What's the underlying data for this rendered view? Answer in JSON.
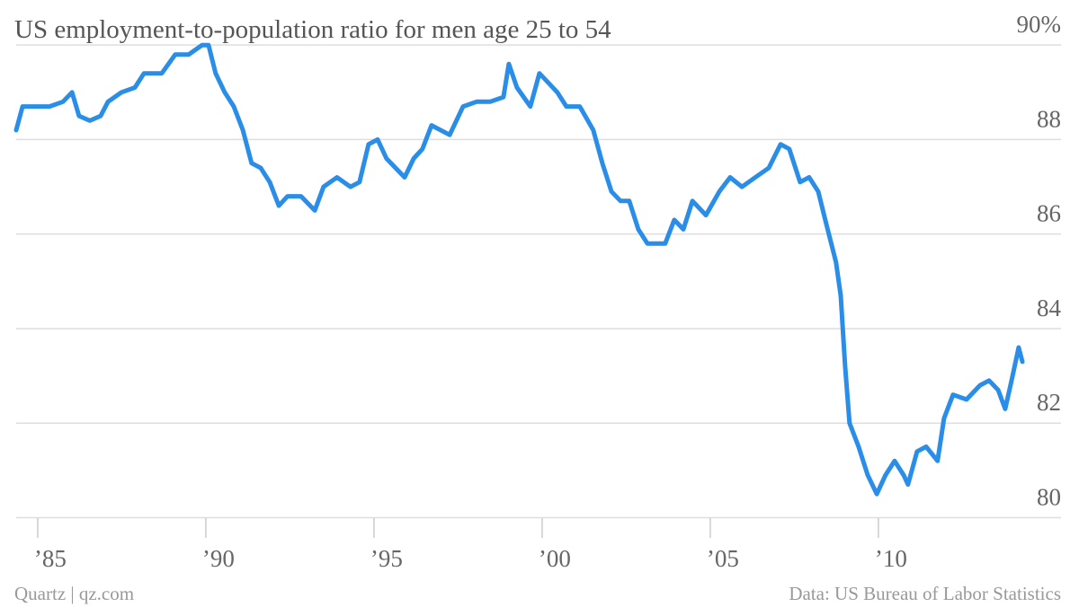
{
  "chart_data": {
    "type": "line",
    "title": "US employment-to-population ratio for men age 25 to 54",
    "source_left": "Quartz | qz.com",
    "source_right": "Data: US Bureau of Labor Statistics",
    "xlim": [
      1984.36,
      2015.43
    ],
    "xticks": [
      {
        "value": 1985,
        "label": "’85"
      },
      {
        "value": 1990,
        "label": "’90"
      },
      {
        "value": 1995,
        "label": "’95"
      },
      {
        "value": 2000,
        "label": "’00"
      },
      {
        "value": 2005,
        "label": "’05"
      },
      {
        "value": 2010,
        "label": "’10"
      }
    ],
    "ylim": [
      79.99,
      90.25
    ],
    "yticks": [
      80,
      82,
      84,
      86,
      88,
      {
        "value": 90,
        "label": "90%"
      }
    ],
    "grid": true,
    "series": [
      {
        "color": "#2a8ee8",
        "x": [
          1984.36,
          1984.55,
          1984.95,
          1985.35,
          1985.75,
          1986.02,
          1986.23,
          1986.55,
          1986.87,
          1987.09,
          1987.49,
          1987.89,
          1988.16,
          1988.42,
          1988.69,
          1989.09,
          1989.49,
          1989.89,
          1990.08,
          1990.29,
          1990.56,
          1990.83,
          1991.1,
          1991.36,
          1991.63,
          1991.9,
          1992.17,
          1992.43,
          1992.83,
          1993.24,
          1993.5,
          1993.9,
          1994.3,
          1994.57,
          1994.84,
          1995.11,
          1995.37,
          1995.64,
          1995.91,
          1996.18,
          1996.44,
          1996.71,
          1997.25,
          1997.65,
          1998.05,
          1998.45,
          1998.85,
          1999.01,
          1999.25,
          1999.65,
          1999.92,
          2000.19,
          2000.45,
          2000.72,
          2001.12,
          2001.52,
          2001.79,
          2002.06,
          2002.33,
          2002.59,
          2002.86,
          2003.13,
          2003.66,
          2003.93,
          2004.2,
          2004.47,
          2004.87,
          2005.27,
          2005.59,
          2005.94,
          2006.34,
          2006.74,
          2007.09,
          2007.35,
          2007.67,
          2007.94,
          2008.21,
          2008.42,
          2008.74,
          2008.88,
          2009.01,
          2009.14,
          2009.41,
          2009.68,
          2009.95,
          2010.21,
          2010.48,
          2010.75,
          2010.88,
          2011.15,
          2011.42,
          2011.76,
          2011.95,
          2012.22,
          2012.62,
          2013.02,
          2013.29,
          2013.56,
          2013.77,
          2013.96,
          2014.17,
          2014.28
        ],
        "values": [
          88.2,
          88.7,
          88.7,
          88.7,
          88.8,
          89.0,
          88.5,
          88.4,
          88.5,
          88.8,
          89.0,
          89.1,
          89.4,
          89.4,
          89.4,
          89.8,
          89.8,
          90.0,
          90.0,
          89.4,
          89.0,
          88.7,
          88.2,
          87.5,
          87.4,
          87.1,
          86.6,
          86.8,
          86.8,
          86.5,
          87.0,
          87.2,
          87.0,
          87.1,
          87.9,
          88.0,
          87.6,
          87.4,
          87.2,
          87.6,
          87.8,
          88.3,
          88.1,
          88.7,
          88.8,
          88.8,
          88.9,
          89.6,
          89.1,
          88.7,
          89.4,
          89.2,
          89.0,
          88.7,
          88.7,
          88.2,
          87.5,
          86.9,
          86.7,
          86.7,
          86.1,
          85.8,
          85.8,
          86.3,
          86.1,
          86.7,
          86.4,
          86.9,
          87.2,
          87.0,
          87.2,
          87.4,
          87.9,
          87.8,
          87.1,
          87.2,
          86.9,
          86.3,
          85.4,
          84.7,
          83.2,
          82.0,
          81.5,
          80.9,
          80.5,
          80.9,
          81.2,
          80.9,
          80.7,
          81.4,
          81.5,
          81.2,
          82.1,
          82.6,
          82.5,
          82.8,
          82.9,
          82.7,
          82.3,
          82.9,
          83.6,
          83.3
        ]
      }
    ]
  }
}
